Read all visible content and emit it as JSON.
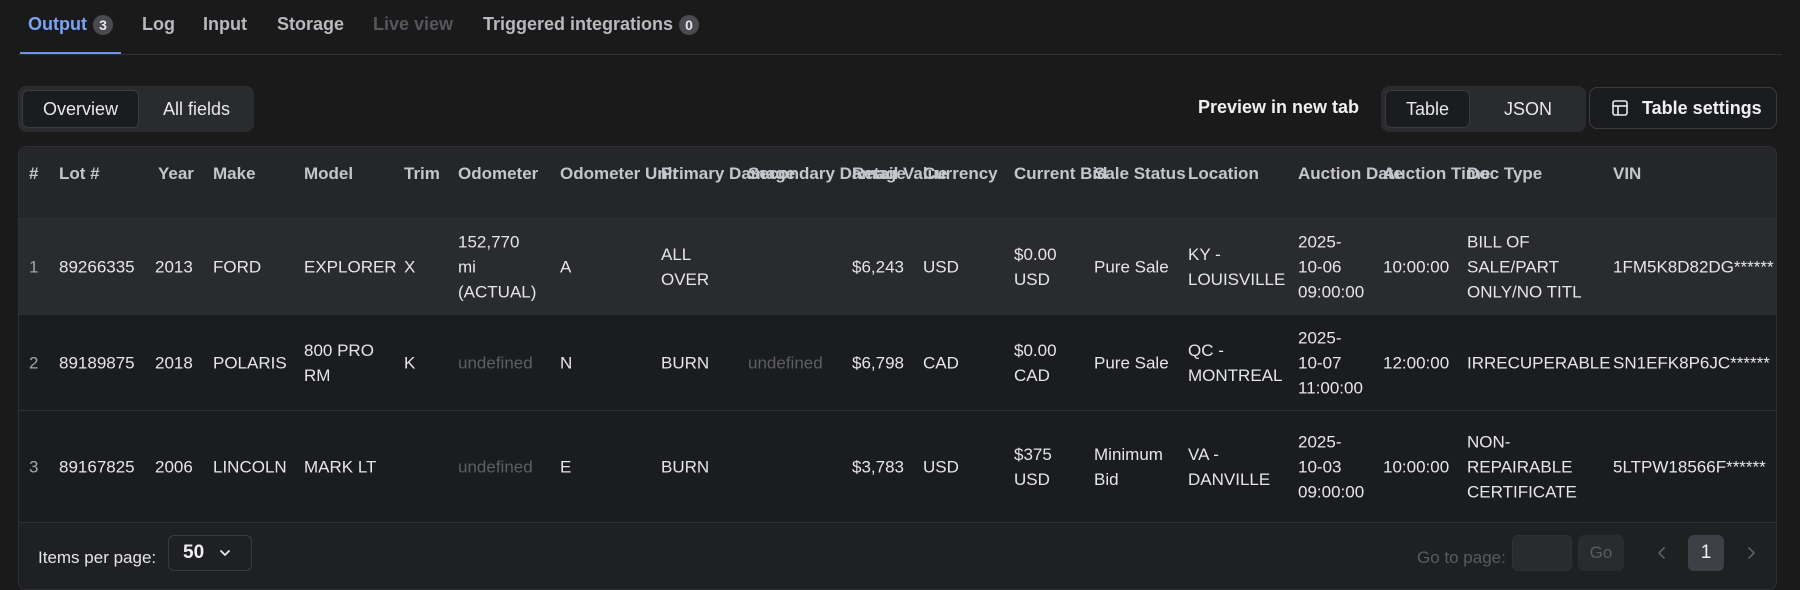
{
  "tabs": {
    "output": {
      "label": "Output",
      "count": "3"
    },
    "log": {
      "label": "Log"
    },
    "input": {
      "label": "Input"
    },
    "storage": {
      "label": "Storage"
    },
    "live_view": {
      "label": "Live view"
    },
    "triggered": {
      "label": "Triggered integrations",
      "count": "0"
    }
  },
  "toolbar": {
    "overview_label": "Overview",
    "all_fields_label": "All fields",
    "preview_label": "Preview in new tab",
    "table_label": "Table",
    "json_label": "JSON",
    "settings_label": "Table settings"
  },
  "table": {
    "columns": [
      "#",
      "Lot #",
      "Year",
      "Make",
      "Model",
      "Trim",
      "Odometer",
      "Odometer\nUnit",
      "Primary\nDamage",
      "Secondary\nDamage",
      "Retail\nValue",
      "Currency",
      "Current\nBid",
      "Sale\nStatus",
      "Location",
      "Auction\nDate",
      "Auction\nTime",
      "Doc Type",
      "VIN"
    ],
    "rows": [
      [
        "1",
        "89266335",
        "2013",
        "FORD",
        "EXPLORER",
        "X",
        "152,770\nmi\n(ACTUAL)",
        "A",
        "ALL\nOVER",
        "",
        "$6,243",
        "USD",
        "$0.00\nUSD",
        "Pure Sale",
        "KY -\nLOUISVILLE",
        "2025-\n10-06\n09:00:00",
        "10:00:00",
        "BILL OF\nSALE/PART\nONLY/NO TITL",
        "1FM5K8D82DG******"
      ],
      [
        "2",
        "89189875",
        "2018",
        "POLARIS",
        "800 PRO\nRM",
        "K",
        "undefined",
        "N",
        "BURN",
        "undefined",
        "$6,798",
        "CAD",
        "$0.00\nCAD",
        "Pure Sale",
        "QC -\nMONTREAL",
        "2025-\n10-07\n11:00:00",
        "12:00:00",
        "IRRECUPERABLE",
        "SN1EFK8P6JC******"
      ],
      [
        "3",
        "89167825",
        "2006",
        "LINCOLN",
        "MARK LT",
        "",
        "undefined",
        "E",
        "BURN",
        "",
        "$3,783",
        "USD",
        "$375\nUSD",
        "Minimum\nBid",
        "VA -\nDANVILLE",
        "2025-\n10-03\n09:00:00",
        "10:00:00",
        "NON-\nREPAIRABLE\nCERTIFICATE",
        "5LTPW18566F******"
      ]
    ]
  },
  "pagination": {
    "items_per_page_label": "Items per page:",
    "items_per_page_value": "50",
    "goto_label": "Go to page:",
    "goto_button": "Go",
    "current_page": "1"
  }
}
